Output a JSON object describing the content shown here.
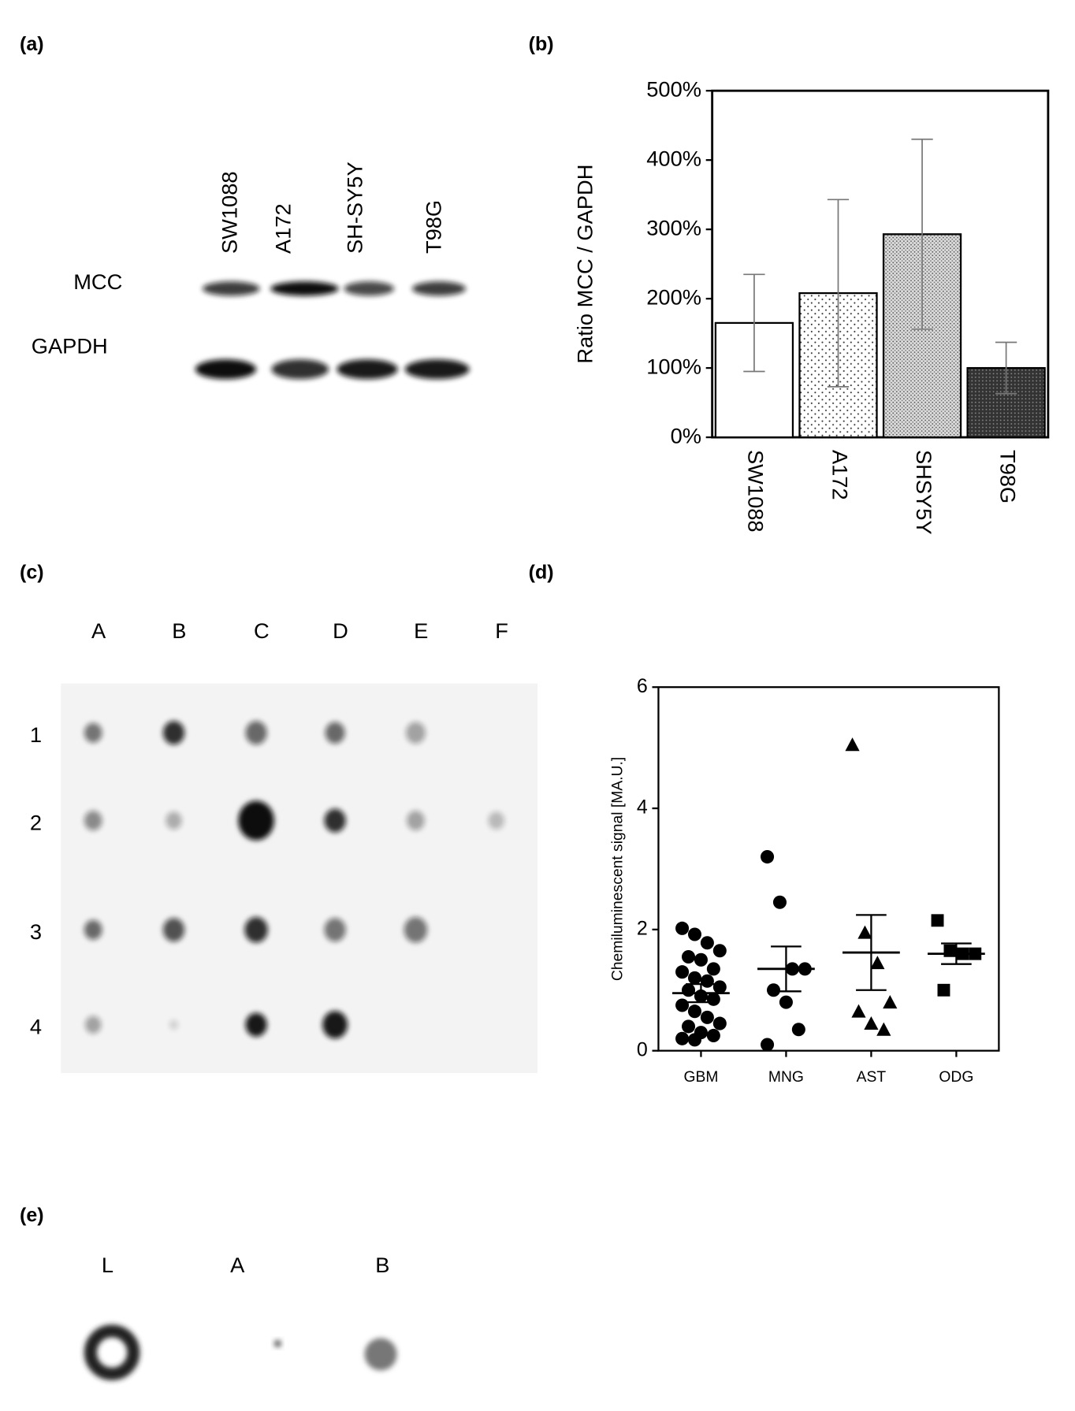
{
  "panel_labels": [
    "(a)",
    "(b)",
    "(c)",
    "(d)",
    "(e)"
  ],
  "blot_a": {
    "lanes": [
      "SW1088",
      "A172",
      "SH-SY5Y",
      "T98G"
    ],
    "rows": [
      "MCC",
      "GAPDH"
    ]
  },
  "blot_c": {
    "columns": [
      "A",
      "B",
      "C",
      "D",
      "E",
      "F"
    ],
    "rows": [
      "1",
      "2",
      "3",
      "4"
    ]
  },
  "blot_e": {
    "lanes": [
      "L",
      "A",
      "B"
    ]
  },
  "chart_data": [
    {
      "type": "bar",
      "categories": [
        "SW1088",
        "A172",
        "SHSY5Y",
        "T98G"
      ],
      "values": [
        165,
        208,
        293,
        100
      ],
      "errors": [
        70,
        135,
        137,
        37
      ],
      "patterns": [
        "none",
        "sparse-dots",
        "dense-dots",
        "dark"
      ],
      "ylabel": "Ratio MCC / GAPDH",
      "ylim": [
        0,
        500
      ],
      "yticks": [
        {
          "value": 0,
          "label": "0%"
        },
        {
          "value": 100,
          "label": "100%"
        },
        {
          "value": 200,
          "label": "200%"
        },
        {
          "value": 300,
          "label": "300%"
        },
        {
          "value": 400,
          "label": "400%"
        },
        {
          "value": 500,
          "label": "500%"
        }
      ]
    },
    {
      "type": "scatter",
      "ylabel": "Chemiluminescent signal [MA.U.]",
      "ylim": [
        0,
        6
      ],
      "yticks": [
        0,
        2,
        4,
        6
      ],
      "series": [
        {
          "name": "GBM",
          "marker": "circle",
          "color": "#000000",
          "values": [
            2.02,
            1.92,
            1.78,
            1.65,
            1.55,
            1.5,
            1.35,
            1.3,
            1.2,
            1.15,
            1.05,
            1.0,
            0.9,
            0.85,
            0.75,
            0.65,
            0.55,
            0.45,
            0.4,
            0.3,
            0.25,
            0.2,
            0.18
          ],
          "mean": 0.95,
          "sem": 0.15
        },
        {
          "name": "MNG",
          "marker": "circle",
          "color": "#000000",
          "values": [
            3.2,
            2.45,
            1.35,
            1.35,
            1.0,
            0.8,
            0.35,
            0.1
          ],
          "mean": 1.35,
          "sem": 0.37
        },
        {
          "name": "AST",
          "marker": "triangle",
          "color": "#000000",
          "values": [
            5.05,
            1.95,
            1.45,
            0.8,
            0.65,
            0.45,
            0.35
          ],
          "mean": 1.62,
          "sem": 0.62
        },
        {
          "name": "ODG",
          "marker": "square",
          "color": "#000000",
          "values": [
            2.15,
            1.65,
            1.6,
            1.6,
            1.0
          ],
          "mean": 1.6,
          "sem": 0.17
        }
      ]
    }
  ]
}
